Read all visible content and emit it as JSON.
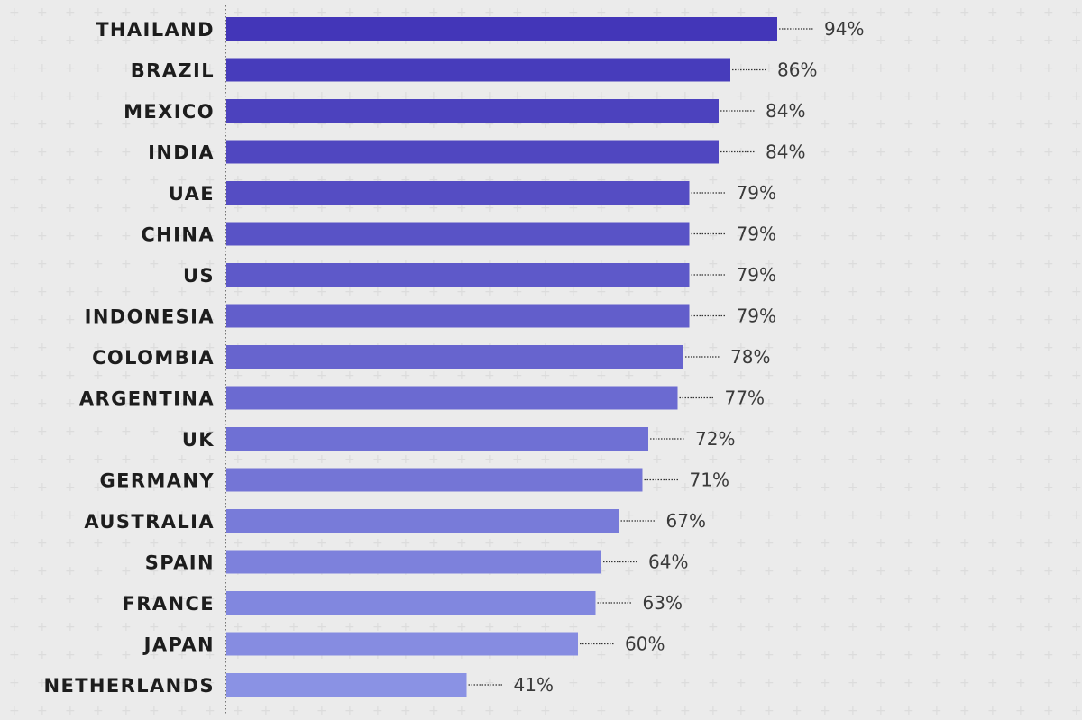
{
  "chart_data": {
    "type": "bar",
    "orientation": "horizontal",
    "categories": [
      "THAILAND",
      "BRAZIL",
      "MEXICO",
      "INDIA",
      "UAE",
      "CHINA",
      "US",
      "INDONESIA",
      "COLOMBIA",
      "ARGENTINA",
      "UK",
      "GERMANY",
      "AUSTRALIA",
      "SPAIN",
      "FRANCE",
      "JAPAN",
      "NETHERLANDS"
    ],
    "values": [
      94,
      86,
      84,
      84,
      79,
      79,
      79,
      79,
      78,
      77,
      72,
      71,
      67,
      64,
      63,
      60,
      41
    ],
    "value_labels": [
      "94%",
      "86%",
      "84%",
      "84%",
      "79%",
      "79%",
      "79%",
      "79%",
      "78%",
      "77%",
      "72%",
      "71%",
      "67%",
      "64%",
      "63%",
      "60%",
      "41%"
    ],
    "title": "",
    "xlabel": "",
    "ylabel": "",
    "grid": false,
    "legend": "none",
    "colors": {
      "bar_top": "#4336b8",
      "bar_bottom": "#8a92e4",
      "background": "#ebebeb",
      "axis_line": "#333333",
      "leader_line": "#333333"
    }
  }
}
